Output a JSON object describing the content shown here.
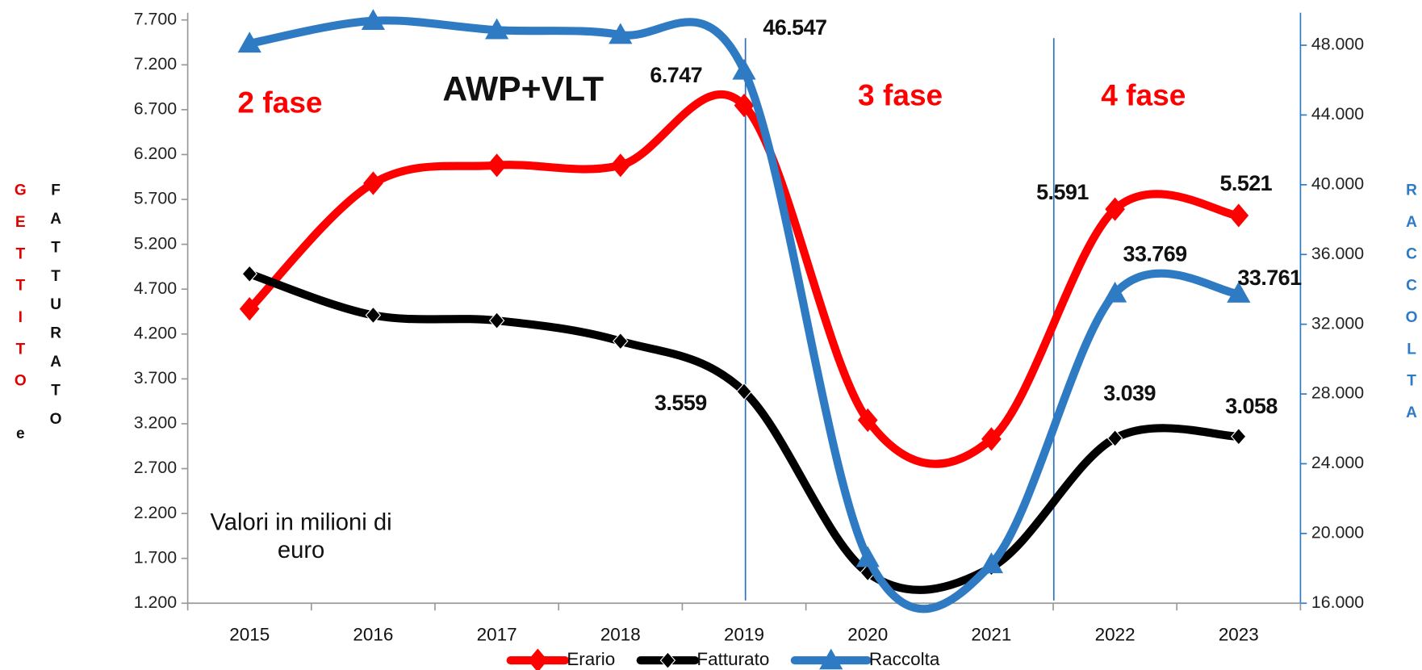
{
  "chart_data": {
    "type": "line",
    "categories": [
      "2015",
      "2016",
      "2017",
      "2018",
      "2019",
      "2020",
      "2021",
      "2022",
      "2023"
    ],
    "series": [
      {
        "name": "Erario",
        "color": "#ff0000",
        "values": [
          4480,
          5880,
          6080,
          6080,
          6747,
          3240,
          3030,
          5591,
          5521
        ],
        "value_labels": [
          null,
          null,
          null,
          null,
          "6.747",
          null,
          null,
          "5.591",
          "5.521"
        ]
      },
      {
        "name": "Fatturato",
        "color": "#000000",
        "values": [
          4870,
          4410,
          4350,
          4120,
          3559,
          1540,
          1600,
          3039,
          3058
        ],
        "value_labels": [
          null,
          null,
          null,
          null,
          "3.559",
          null,
          null,
          "3.039",
          "3.058"
        ]
      },
      {
        "name": "Raccolta",
        "color": "#2e7bc4",
        "axis": "y2",
        "values": [
          48100,
          49400,
          48870,
          48600,
          46547,
          18600,
          18240,
          33769,
          33761
        ],
        "value_labels": [
          null,
          null,
          null,
          null,
          "46.547",
          null,
          null,
          "33.769",
          "33.761"
        ]
      }
    ],
    "ylim": [
      1200,
      7700
    ],
    "yticks": [
      {
        "value": 1200,
        "label": "1.200"
      },
      {
        "value": 1700,
        "label": "1.700"
      },
      {
        "value": 2200,
        "label": "2.200"
      },
      {
        "value": 2700,
        "label": "2.700"
      },
      {
        "value": 3200,
        "label": "3.200"
      },
      {
        "value": 3700,
        "label": "3.700"
      },
      {
        "value": 4200,
        "label": "4.200"
      },
      {
        "value": 4700,
        "label": "4.700"
      },
      {
        "value": 5200,
        "label": "5.200"
      },
      {
        "value": 5700,
        "label": "5.700"
      },
      {
        "value": 6200,
        "label": "6.200"
      },
      {
        "value": 6700,
        "label": "6.700"
      },
      {
        "value": 7200,
        "label": "7.200"
      },
      {
        "value": 7700,
        "label": "7.700"
      }
    ],
    "y2lim": [
      16000,
      49450
    ],
    "y2ticks": [
      {
        "value": 16000,
        "label": "16.000"
      },
      {
        "value": 20000,
        "label": "20.000"
      },
      {
        "value": 24000,
        "label": "24.000"
      },
      {
        "value": 28000,
        "label": "28.000"
      },
      {
        "value": 32000,
        "label": "32.000"
      },
      {
        "value": 36000,
        "label": "36.000"
      },
      {
        "value": 40000,
        "label": "40.000"
      },
      {
        "value": 44000,
        "label": "44.000"
      },
      {
        "value": 48000,
        "label": "48.000"
      }
    ],
    "y_label": [
      "GETTITO",
      "e",
      "FATTURATO"
    ],
    "y2_label": "RACCOLTA",
    "annotations": [
      "2 fase",
      "AWP+VLT",
      "3 fase",
      "4 fase",
      "Valori in milioni di euro"
    ],
    "legend": "bottom"
  }
}
